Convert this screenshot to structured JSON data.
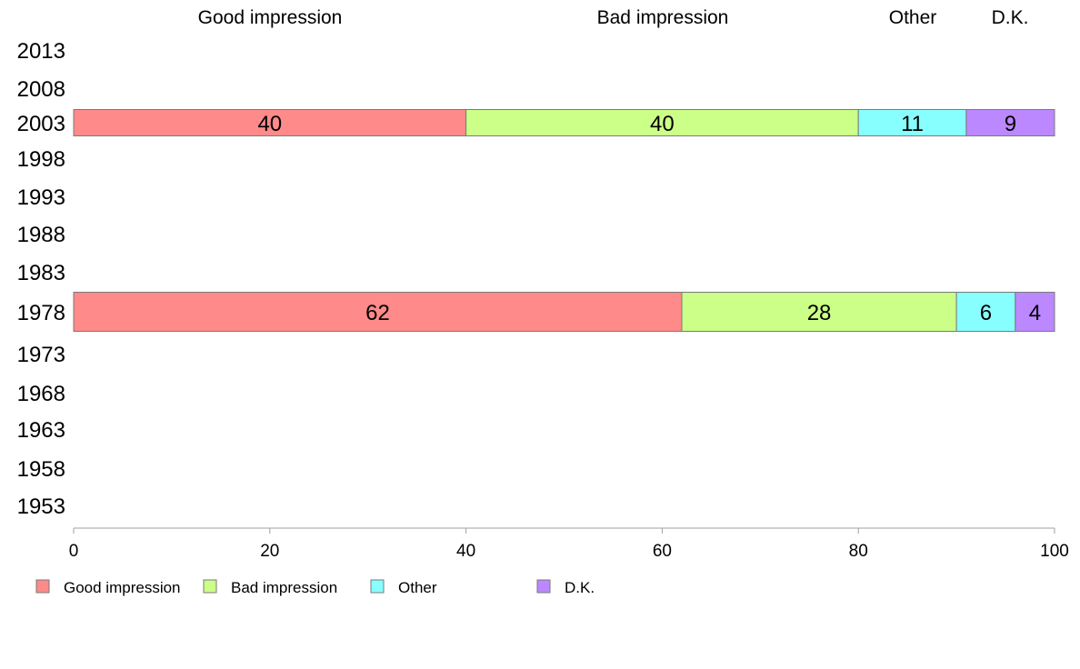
{
  "chart_data": {
    "type": "bar",
    "orientation": "horizontal",
    "stacked": true,
    "column_headers": [
      "Good impression",
      "Bad impression",
      "Other",
      "D.K."
    ],
    "categories": [
      "2013",
      "2008",
      "2003",
      "1998",
      "1993",
      "1988",
      "1983",
      "1978",
      "1973",
      "1968",
      "1963",
      "1958",
      "1953"
    ],
    "series": [
      {
        "name": "Good impression",
        "color": "#ff8a8a",
        "values": [
          null,
          null,
          40,
          null,
          null,
          null,
          null,
          62,
          null,
          null,
          null,
          null,
          null
        ]
      },
      {
        "name": "Bad impression",
        "color": "#ccff88",
        "values": [
          null,
          null,
          40,
          null,
          null,
          null,
          null,
          28,
          null,
          null,
          null,
          null,
          null
        ]
      },
      {
        "name": "Other",
        "color": "#88ffff",
        "values": [
          null,
          null,
          11,
          null,
          null,
          null,
          null,
          6,
          null,
          null,
          null,
          null,
          null
        ]
      },
      {
        "name": "D.K.",
        "color": "#bb88ff",
        "values": [
          null,
          null,
          9,
          null,
          null,
          null,
          null,
          4,
          null,
          null,
          null,
          null,
          null
        ]
      }
    ],
    "xlim": [
      0,
      100
    ],
    "xticks": [
      "0",
      "20",
      "40",
      "60",
      "80",
      "100"
    ],
    "grid": false,
    "legend_position": "bottom-left"
  }
}
